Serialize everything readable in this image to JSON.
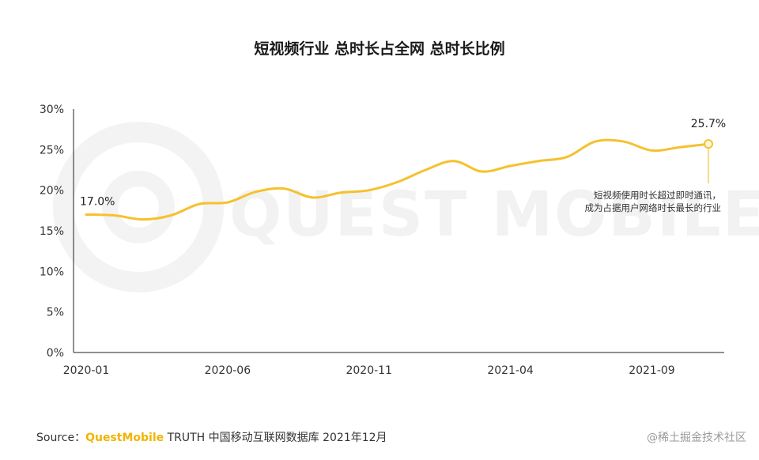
{
  "chart_data": {
    "type": "line",
    "title": "短视频行业 总时长占全网 总时长比例",
    "x": [
      "2020-01",
      "2020-02",
      "2020-03",
      "2020-04",
      "2020-05",
      "2020-06",
      "2020-07",
      "2020-08",
      "2020-09",
      "2020-10",
      "2020-11",
      "2020-12",
      "2021-01",
      "2021-02",
      "2021-03",
      "2021-04",
      "2021-05",
      "2021-06",
      "2021-07",
      "2021-08",
      "2021-09",
      "2021-10",
      "2021-11"
    ],
    "x_tick_labels": [
      "2020-01",
      "2020-06",
      "2020-11",
      "2021-04",
      "2021-09"
    ],
    "series": [
      {
        "values": [
          17.0,
          16.9,
          16.4,
          16.9,
          18.3,
          18.5,
          19.8,
          20.2,
          19.1,
          19.7,
          20.0,
          21.0,
          22.5,
          23.6,
          22.3,
          23.0,
          23.6,
          24.1,
          26.0,
          26.0,
          24.9,
          25.3,
          25.7
        ]
      }
    ],
    "y_ticks": [
      "0%",
      "5%",
      "10%",
      "15%",
      "20%",
      "25%",
      "30%"
    ],
    "ylim": [
      0,
      30
    ],
    "y_unit": "%",
    "data_labels": {
      "first": "17.0%",
      "last": "25.7%"
    },
    "annotation": [
      "短视频使用时长超过即时通讯，",
      "成为占据用户网络时长最长的行业"
    ],
    "line_color": "#f5c12e",
    "grid": false
  },
  "watermark": "QUEST MOBILE",
  "footer": {
    "source_prefix": "Source：",
    "brand": "QuestMobile",
    "source_rest": " TRUTH 中国移动互联网数据库 2021年12月"
  },
  "credit": "@稀土掘金技术社区"
}
